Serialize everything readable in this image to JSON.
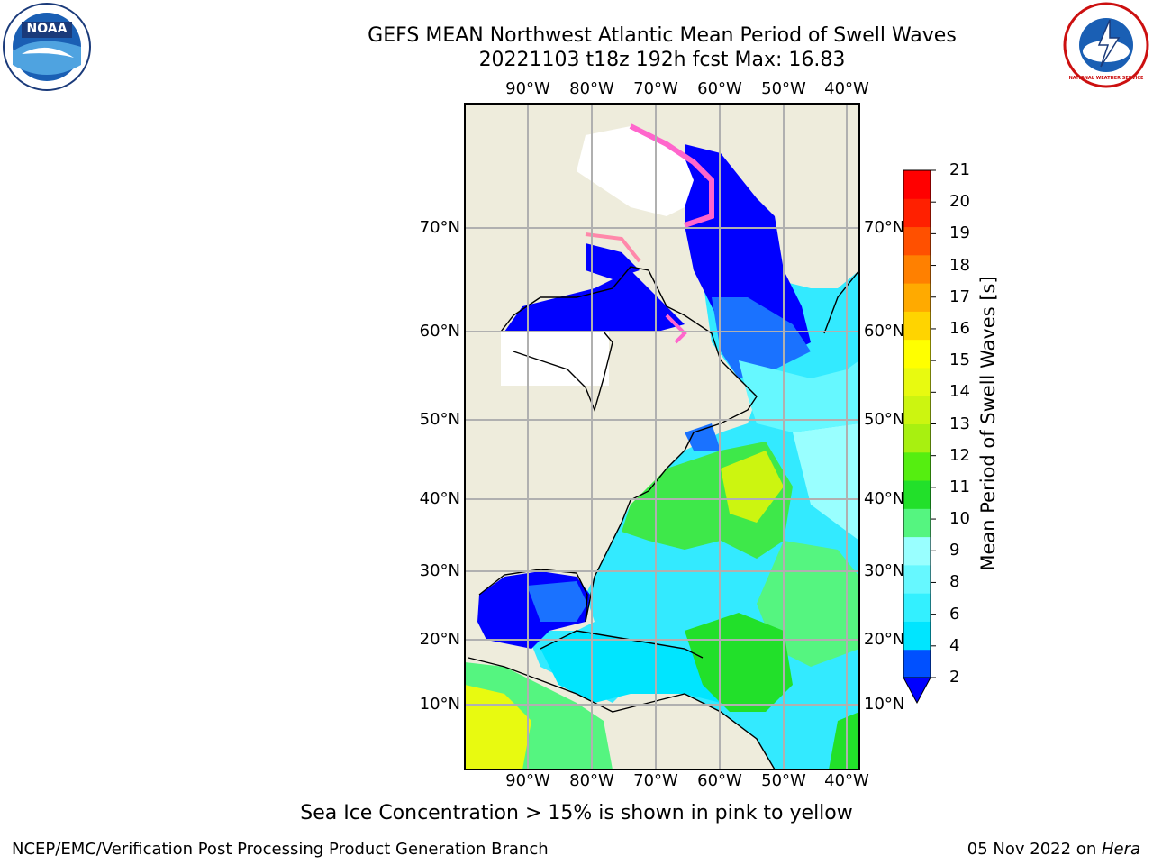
{
  "title": {
    "line1": "GEFS MEAN Northwest Atlantic Mean Period of Swell Waves",
    "line2": "20221103 t18z 192h fcst    Max: 16.83"
  },
  "logos": {
    "left": "NOAA",
    "right": "NATIONAL WEATHER SERVICE"
  },
  "lon_labels": [
    "90°W",
    "80°W",
    "70°W",
    "60°W",
    "50°W",
    "40°W"
  ],
  "lat_labels": [
    "70°N",
    "60°N",
    "50°N",
    "40°N",
    "30°N",
    "20°N",
    "10°N"
  ],
  "colorbar": {
    "label": "Mean Period of Swell Waves [s]",
    "ticks": [
      "2",
      "4",
      "6",
      "8",
      "9",
      "10",
      "11",
      "12",
      "13",
      "14",
      "15",
      "16",
      "17",
      "18",
      "19",
      "20",
      "21"
    ],
    "colors": [
      "#0050ff",
      "#00e5ff",
      "#33f0ff",
      "#66f8ff",
      "#99ffff",
      "#55f580",
      "#22e02a",
      "#55ee10",
      "#a8f010",
      "#ccf510",
      "#e8fa10",
      "#ffff00",
      "#ffd400",
      "#ffaa00",
      "#ff8000",
      "#ff5000",
      "#ff2000",
      "#ff0000"
    ],
    "under_color": "#0000ff"
  },
  "map": {
    "land_color": "#eeecdc",
    "grid_color": "#b0b0b0",
    "ice_color": "#ffffff"
  },
  "footnote": "Sea Ice Concentration > 15% is shown in pink to yellow",
  "footer": {
    "left": "NCEP/EMC/Verification Post Processing Product Generation Branch",
    "right_date": "05 Nov 2022 on ",
    "right_host": "Hera"
  }
}
